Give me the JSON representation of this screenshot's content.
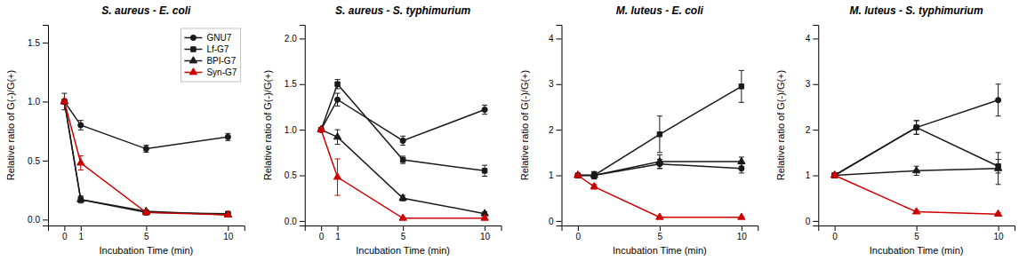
{
  "chart_data": [
    {
      "type": "line",
      "title": "S. aureus - E. coli",
      "xlabel": "Incubation Time (min)",
      "ylabel": "Relative ratio of G(-)/G(+)",
      "x": [
        0,
        1,
        5,
        10
      ],
      "xlim": [
        -1,
        11
      ],
      "xticks": [
        0,
        1,
        5,
        10
      ],
      "ylim": [
        -0.05,
        1.65
      ],
      "yticks": [
        {
          "value": 0.0,
          "label": "0.0"
        },
        0.5,
        {
          "value": 1.0,
          "label": "1.0"
        },
        1.5
      ],
      "grid": false,
      "legend": "upper right",
      "series": [
        {
          "name": "GNU7",
          "color": "#1a1a1a",
          "marker": "circle",
          "values": [
            1.0,
            0.8,
            0.6,
            0.7
          ],
          "errors": [
            0.07,
            0.04,
            0.03,
            0.03
          ]
        },
        {
          "name": "Lf-G7",
          "color": "#1a1a1a",
          "marker": "square",
          "values": [
            1.0,
            0.17,
            0.06,
            0.05
          ],
          "errors": [
            0.0,
            0.03,
            0.02,
            0.01
          ]
        },
        {
          "name": "BPI-G7",
          "color": "#1a1a1a",
          "marker": "triangle",
          "values": [
            1.0,
            0.17,
            0.07,
            0.04
          ],
          "errors": [
            0.0,
            0.02,
            0.01,
            0.01
          ]
        },
        {
          "name": "Syn-G7",
          "color": "#cc0000",
          "marker": "triangle",
          "values": [
            1.0,
            0.48,
            0.06,
            0.04
          ],
          "errors": [
            0.0,
            0.06,
            0.01,
            0.01
          ]
        }
      ]
    },
    {
      "type": "line",
      "title": "S. aureus - S. typhimurium",
      "xlabel": "Incubation Time (min)",
      "ylabel": "Relative ratio of G(-)/G(+)",
      "x": [
        0,
        1,
        5,
        10
      ],
      "xlim": [
        -1,
        11
      ],
      "xticks": [
        0,
        1,
        5,
        10
      ],
      "ylim": [
        -0.05,
        2.15
      ],
      "yticks": [
        {
          "value": 0.0,
          "label": "0.0"
        },
        0.5,
        {
          "value": 1.0,
          "label": "1.0"
        },
        1.5,
        {
          "value": 2.0,
          "label": "2.0"
        }
      ],
      "grid": false,
      "series": [
        {
          "color": "#1a1a1a",
          "marker": "circle",
          "values": [
            1.0,
            1.33,
            0.88,
            1.22
          ],
          "errors": [
            0.0,
            0.07,
            0.05,
            0.05
          ]
        },
        {
          "color": "#1a1a1a",
          "marker": "square",
          "values": [
            1.0,
            1.5,
            0.67,
            0.55
          ],
          "errors": [
            0.0,
            0.05,
            0.04,
            0.06
          ]
        },
        {
          "color": "#1a1a1a",
          "marker": "triangle",
          "values": [
            1.0,
            0.92,
            0.25,
            0.08
          ],
          "errors": [
            0.0,
            0.08,
            0.03,
            0.02
          ]
        },
        {
          "color": "#cc0000",
          "marker": "triangle",
          "values": [
            1.0,
            0.48,
            0.03,
            0.03
          ],
          "errors": [
            0.0,
            0.2,
            0.01,
            0.01
          ]
        }
      ]
    },
    {
      "type": "line",
      "title": "M. luteus - E. coli",
      "xlabel": "Incubation Time (min)",
      "ylabel": "Relative ratio of G(-)/G(+)",
      "x": [
        0,
        1,
        5,
        10
      ],
      "xlim": [
        -1,
        11
      ],
      "xticks": [
        0,
        5,
        10
      ],
      "ylim": [
        -0.1,
        4.3
      ],
      "yticks": [
        0,
        1,
        2,
        3,
        4
      ],
      "grid": false,
      "series": [
        {
          "color": "#1a1a1a",
          "marker": "circle",
          "values": [
            1.0,
            1.0,
            1.25,
            1.15
          ],
          "errors": [
            0.0,
            0.08,
            0.1,
            0.1
          ]
        },
        {
          "color": "#1a1a1a",
          "marker": "square",
          "values": [
            1.0,
            1.0,
            1.9,
            2.95
          ],
          "errors": [
            0.0,
            0.08,
            0.4,
            0.35
          ]
        },
        {
          "color": "#1a1a1a",
          "marker": "triangle",
          "values": [
            1.0,
            1.0,
            1.3,
            1.3
          ],
          "errors": [
            0.0,
            0.05,
            0.15,
            0.1
          ]
        },
        {
          "color": "#cc0000",
          "marker": "triangle",
          "values": [
            1.0,
            0.75,
            0.08,
            0.08
          ],
          "errors": [
            0.0,
            0.05,
            0.01,
            0.01
          ]
        }
      ]
    },
    {
      "type": "line",
      "title": "M. luteus - S. typhimurium",
      "xlabel": "Incubation Time (min)",
      "ylabel": "Relative ratio of G(-)/G(+)",
      "x": [
        0,
        5,
        10
      ],
      "xlim": [
        -1,
        11
      ],
      "xticks": [
        0,
        5,
        10
      ],
      "ylim": [
        -0.1,
        4.3
      ],
      "yticks": [
        0,
        1,
        2,
        3,
        4
      ],
      "grid": false,
      "series": [
        {
          "color": "#1a1a1a",
          "marker": "circle",
          "values": [
            1.0,
            2.05,
            2.65
          ],
          "errors": [
            0.05,
            0.15,
            0.35
          ]
        },
        {
          "color": "#1a1a1a",
          "marker": "square",
          "values": [
            1.0,
            2.05,
            1.2
          ],
          "errors": [
            0.05,
            0.15,
            0.15
          ]
        },
        {
          "color": "#1a1a1a",
          "marker": "triangle",
          "values": [
            1.0,
            1.1,
            1.15
          ],
          "errors": [
            0.05,
            0.1,
            0.35
          ]
        },
        {
          "color": "#cc0000",
          "marker": "triangle",
          "values": [
            1.0,
            0.2,
            0.15
          ],
          "errors": [
            0.05,
            0.03,
            0.03
          ]
        }
      ]
    }
  ]
}
